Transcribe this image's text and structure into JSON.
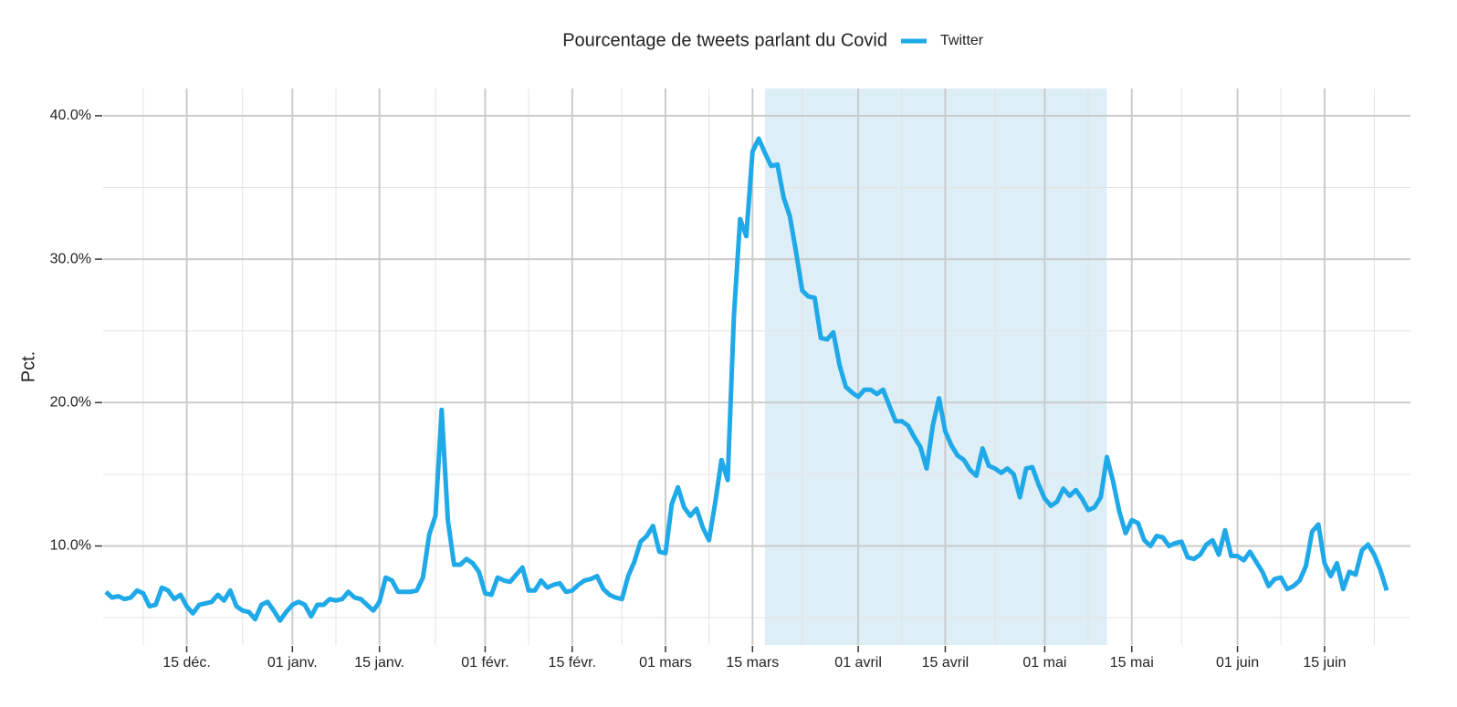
{
  "chart_data": {
    "type": "line",
    "legend_title": "Pourcentage de tweets parlant du Covid",
    "ylabel": "Pct.",
    "legend_position": "top",
    "grid": true,
    "x": [
      "12-02",
      "12-03",
      "12-04",
      "12-05",
      "12-06",
      "12-07",
      "12-08",
      "12-09",
      "12-10",
      "12-11",
      "12-12",
      "12-13",
      "12-14",
      "12-15",
      "12-16",
      "12-17",
      "12-18",
      "12-19",
      "12-20",
      "12-21",
      "12-22",
      "12-23",
      "12-24",
      "12-25",
      "12-26",
      "12-27",
      "12-28",
      "12-29",
      "12-30",
      "12-31",
      "01-01",
      "01-02",
      "01-03",
      "01-04",
      "01-05",
      "01-06",
      "01-07",
      "01-08",
      "01-09",
      "01-10",
      "01-11",
      "01-12",
      "01-13",
      "01-14",
      "01-15",
      "01-16",
      "01-17",
      "01-18",
      "01-19",
      "01-20",
      "01-21",
      "01-22",
      "01-23",
      "01-24",
      "01-25",
      "01-26",
      "01-27",
      "01-28",
      "01-29",
      "01-30",
      "01-31",
      "02-01",
      "02-02",
      "02-03",
      "02-04",
      "02-05",
      "02-06",
      "02-07",
      "02-08",
      "02-09",
      "02-10",
      "02-11",
      "02-12",
      "02-13",
      "02-14",
      "02-15",
      "02-16",
      "02-17",
      "02-18",
      "02-19",
      "02-20",
      "02-21",
      "02-22",
      "02-23",
      "02-24",
      "02-25",
      "02-26",
      "02-27",
      "02-28",
      "02-29",
      "03-01",
      "03-02",
      "03-03",
      "03-04",
      "03-05",
      "03-06",
      "03-07",
      "03-08",
      "03-09",
      "03-10",
      "03-11",
      "03-12",
      "03-13",
      "03-14",
      "03-15",
      "03-16",
      "03-17",
      "03-18",
      "03-19",
      "03-20",
      "03-21",
      "03-22",
      "03-23",
      "03-24",
      "03-25",
      "03-26",
      "03-27",
      "03-28",
      "03-29",
      "03-30",
      "03-31",
      "04-01",
      "04-02",
      "04-03",
      "04-04",
      "04-05",
      "04-06",
      "04-07",
      "04-08",
      "04-09",
      "04-10",
      "04-11",
      "04-12",
      "04-13",
      "04-14",
      "04-15",
      "04-16",
      "04-17",
      "04-18",
      "04-19",
      "04-20",
      "04-21",
      "04-22",
      "04-23",
      "04-24",
      "04-25",
      "04-26",
      "04-27",
      "04-28",
      "04-29",
      "04-30",
      "05-01",
      "05-02",
      "05-03",
      "05-04",
      "05-05",
      "05-06",
      "05-07",
      "05-08",
      "05-09",
      "05-10",
      "05-11",
      "05-12",
      "05-13",
      "05-14",
      "05-15",
      "05-16",
      "05-17",
      "05-18",
      "05-19",
      "05-20",
      "05-21",
      "05-22",
      "05-23",
      "05-24",
      "05-25",
      "05-26",
      "05-27",
      "05-28",
      "05-29",
      "05-30",
      "05-31",
      "06-01",
      "06-02",
      "06-03",
      "06-04",
      "06-05",
      "06-06",
      "06-07",
      "06-08",
      "06-09",
      "06-10",
      "06-11",
      "06-12",
      "06-13",
      "06-14",
      "06-15",
      "06-16",
      "06-17",
      "06-18",
      "06-19",
      "06-20",
      "06-21",
      "06-22",
      "06-23",
      "06-24",
      "06-25"
    ],
    "series": [
      {
        "name": "Twitter",
        "color": "#1fa9e8",
        "values": [
          6.8,
          6.4,
          6.5,
          6.3,
          6.4,
          6.9,
          6.7,
          5.8,
          5.9,
          7.1,
          6.9,
          6.3,
          6.6,
          5.8,
          5.3,
          5.9,
          6.0,
          6.1,
          6.6,
          6.2,
          6.9,
          5.8,
          5.5,
          5.4,
          4.9,
          5.9,
          6.1,
          5.5,
          4.8,
          5.4,
          5.9,
          6.1,
          5.9,
          5.1,
          5.9,
          5.9,
          6.3,
          6.2,
          6.3,
          6.8,
          6.4,
          6.3,
          5.9,
          5.5,
          6.1,
          7.8,
          7.6,
          6.8,
          6.8,
          6.8,
          6.9,
          7.8,
          10.8,
          12.1,
          19.5,
          11.8,
          8.7,
          8.7,
          9.1,
          8.8,
          8.2,
          6.7,
          6.6,
          7.8,
          7.6,
          7.5,
          8.0,
          8.5,
          6.9,
          6.9,
          7.6,
          7.1,
          7.3,
          7.4,
          6.8,
          6.9,
          7.3,
          7.6,
          7.7,
          7.9,
          7.0,
          6.6,
          6.4,
          6.3,
          7.9,
          8.9,
          10.3,
          10.7,
          11.4,
          9.6,
          9.5,
          12.9,
          14.1,
          12.7,
          12.1,
          12.6,
          11.3,
          10.4,
          13.0,
          16.0,
          14.6,
          26.0,
          32.8,
          31.6,
          37.5,
          38.4,
          37.4,
          36.5,
          36.6,
          34.3,
          33.0,
          30.5,
          27.8,
          27.4,
          27.3,
          24.5,
          24.4,
          24.9,
          22.6,
          21.1,
          20.7,
          20.4,
          20.9,
          20.9,
          20.6,
          20.9,
          19.8,
          18.7,
          18.7,
          18.4,
          17.6,
          16.9,
          15.4,
          18.4,
          20.3,
          18.0,
          17.0,
          16.3,
          16.0,
          15.3,
          14.9,
          16.8,
          15.6,
          15.4,
          15.1,
          15.4,
          15.0,
          13.4,
          15.4,
          15.5,
          14.3,
          13.3,
          12.8,
          13.1,
          14.0,
          13.5,
          13.9,
          13.3,
          12.5,
          12.7,
          13.4,
          16.2,
          14.5,
          12.4,
          10.9,
          11.8,
          11.6,
          10.4,
          10.0,
          10.7,
          10.6,
          10.0,
          10.2,
          10.3,
          9.2,
          9.1,
          9.4,
          10.1,
          10.4,
          9.4,
          11.1,
          9.3,
          9.3,
          9.0,
          9.6,
          8.9,
          8.2,
          7.2,
          7.7,
          7.8,
          7.0,
          7.2,
          7.6,
          8.6,
          11.0,
          11.5,
          8.8,
          7.9,
          8.8,
          7.0,
          8.2,
          8.0,
          9.7,
          10.1,
          9.4,
          8.3,
          6.9
        ]
      }
    ],
    "xlim": [
      "12-02",
      "06-25"
    ],
    "xticks": [
      {
        "value": "12-15",
        "label": "15 déc."
      },
      {
        "value": "01-01",
        "label": "01 janv."
      },
      {
        "value": "01-15",
        "label": "15 janv."
      },
      {
        "value": "02-01",
        "label": "01 févr."
      },
      {
        "value": "02-15",
        "label": "15 févr."
      },
      {
        "value": "03-01",
        "label": "01 mars"
      },
      {
        "value": "03-15",
        "label": "15 mars"
      },
      {
        "value": "04-01",
        "label": "01 avril"
      },
      {
        "value": "04-15",
        "label": "15 avril"
      },
      {
        "value": "05-01",
        "label": "01 mai"
      },
      {
        "value": "05-15",
        "label": "15 mai"
      },
      {
        "value": "06-01",
        "label": "01 juin"
      },
      {
        "value": "06-15",
        "label": "15 juin"
      }
    ],
    "xminor": [
      "12-08",
      "12-24",
      "01-08",
      "01-24",
      "02-08",
      "02-23",
      "03-08",
      "03-23",
      "04-08",
      "04-23",
      "05-08",
      "05-23",
      "06-08",
      "06-23"
    ],
    "ylim": [
      3.1,
      41.9
    ],
    "yticks": [
      {
        "value": 10,
        "label": "10.0%"
      },
      {
        "value": 20,
        "label": "20.0%"
      },
      {
        "value": 30,
        "label": "30.0%"
      },
      {
        "value": 40,
        "label": "40.0%"
      }
    ],
    "yminor": [
      5,
      15,
      25,
      35
    ],
    "shade": {
      "from": "03-17",
      "to": "05-11",
      "color": "#deeef7"
    }
  }
}
